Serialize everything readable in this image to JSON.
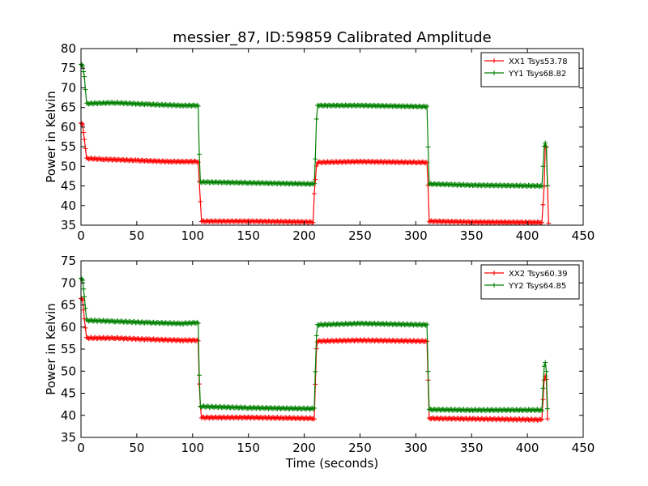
{
  "chart_data": [
    {
      "type": "line",
      "title": "messier_87, ID:59859 Calibrated Amplitude",
      "xlabel": "",
      "ylabel": "Power in Kelvin",
      "xlim": [
        0,
        450
      ],
      "ylim": [
        35,
        80
      ],
      "xticks": [
        "0",
        "50",
        "100",
        "150",
        "200",
        "250",
        "300",
        "350",
        "400",
        "450"
      ],
      "yticks": [
        "35",
        "40",
        "45",
        "50",
        "55",
        "60",
        "65",
        "70",
        "75",
        "80"
      ],
      "grid": false,
      "legend_position": "top-right",
      "series": [
        {
          "name": "XX1 Tsys53.78",
          "color": "#ff0000",
          "points": [
            [
              0,
              61
            ],
            [
              1.5,
              60.5
            ],
            [
              3,
              57
            ],
            [
              5,
              52
            ],
            [
              20,
              51.8
            ],
            [
              50,
              51.5
            ],
            [
              80,
              51.2
            ],
            [
              105,
              51.2
            ],
            [
              106,
              46
            ],
            [
              107,
              41
            ],
            [
              108,
              36
            ],
            [
              150,
              36
            ],
            [
              208,
              35.8
            ],
            [
              209,
              43
            ],
            [
              211,
              50
            ],
            [
              212,
              51
            ],
            [
              250,
              51.2
            ],
            [
              300,
              51
            ],
            [
              310,
              51
            ],
            [
              311,
              45
            ],
            [
              312,
              36
            ],
            [
              350,
              35.8
            ],
            [
              413,
              35.7
            ],
            [
              415,
              45
            ],
            [
              416,
              55
            ],
            [
              417,
              55
            ],
            [
              418,
              45
            ],
            [
              419,
              35.5
            ]
          ]
        },
        {
          "name": "YY1 Tsys68.82",
          "color": "#008000",
          "points": [
            [
              0,
              76
            ],
            [
              1.5,
              75.5
            ],
            [
              3,
              73
            ],
            [
              5,
              66
            ],
            [
              30,
              66.2
            ],
            [
              60,
              65.8
            ],
            [
              90,
              65.5
            ],
            [
              105,
              65.5
            ],
            [
              106,
              53
            ],
            [
              107,
              46
            ],
            [
              150,
              45.8
            ],
            [
              209,
              45.5
            ],
            [
              210,
              52
            ],
            [
              211,
              62
            ],
            [
              212,
              65.5
            ],
            [
              250,
              65.5
            ],
            [
              310,
              65.2
            ],
            [
              311,
              55
            ],
            [
              312,
              45.5
            ],
            [
              350,
              45.2
            ],
            [
              413,
              45
            ],
            [
              415,
              55
            ],
            [
              416,
              56
            ],
            [
              417,
              55
            ],
            [
              418,
              45
            ]
          ]
        }
      ]
    },
    {
      "type": "line",
      "title": "",
      "xlabel": "Time (seconds)",
      "ylabel": "Power in Kelvin",
      "xlim": [
        0,
        450
      ],
      "ylim": [
        35,
        75
      ],
      "xticks": [
        "0",
        "50",
        "100",
        "150",
        "200",
        "250",
        "300",
        "350",
        "400",
        "450"
      ],
      "yticks": [
        "35",
        "40",
        "45",
        "50",
        "55",
        "60",
        "65",
        "70",
        "75"
      ],
      "grid": false,
      "legend_position": "top-right",
      "series": [
        {
          "name": "XX2 Tsys60.39",
          "color": "#ff0000",
          "points": [
            [
              0,
              66.5
            ],
            [
              1.5,
              66
            ],
            [
              3,
              62
            ],
            [
              5,
              57.5
            ],
            [
              30,
              57.5
            ],
            [
              60,
              57.2
            ],
            [
              90,
              57
            ],
            [
              105,
              57
            ],
            [
              106,
              47
            ],
            [
              107,
              42
            ],
            [
              108,
              39.5
            ],
            [
              150,
              39.5
            ],
            [
              209,
              39.3
            ],
            [
              210,
              47
            ],
            [
              211,
              55
            ],
            [
              212,
              56.8
            ],
            [
              250,
              57
            ],
            [
              310,
              56.8
            ],
            [
              311,
              48
            ],
            [
              312,
              39.3
            ],
            [
              350,
              39.2
            ],
            [
              413,
              39
            ],
            [
              415,
              48
            ],
            [
              416,
              49
            ],
            [
              417,
              48
            ],
            [
              418,
              39.2
            ]
          ]
        },
        {
          "name": "YY2 Tsys64.85",
          "color": "#008000",
          "points": [
            [
              0,
              71
            ],
            [
              1.5,
              70.5
            ],
            [
              3,
              67
            ],
            [
              5,
              61.5
            ],
            [
              30,
              61.3
            ],
            [
              60,
              61
            ],
            [
              90,
              60.8
            ],
            [
              105,
              61
            ],
            [
              106,
              49
            ],
            [
              107,
              42
            ],
            [
              150,
              41.7
            ],
            [
              209,
              41.5
            ],
            [
              210,
              50
            ],
            [
              211,
              58
            ],
            [
              212,
              60.5
            ],
            [
              250,
              60.8
            ],
            [
              310,
              60.5
            ],
            [
              311,
              50
            ],
            [
              312,
              41.3
            ],
            [
              350,
              41.2
            ],
            [
              413,
              41.2
            ],
            [
              415,
              51
            ],
            [
              416,
              52
            ],
            [
              417,
              50
            ],
            [
              418,
              41.5
            ]
          ]
        }
      ]
    }
  ]
}
